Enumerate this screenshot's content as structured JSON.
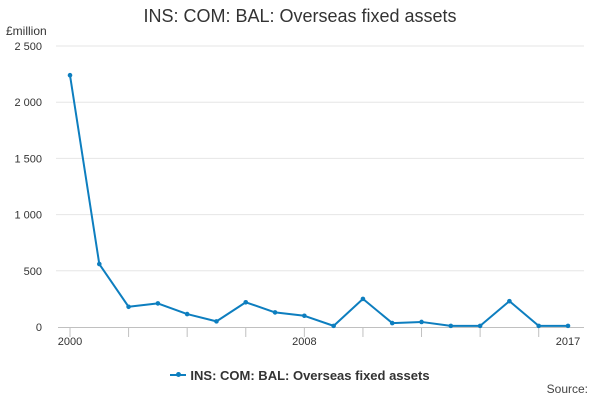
{
  "chart_data": {
    "type": "line",
    "title": "INS: COM: BAL: Overseas fixed assets",
    "ylabel": "£million",
    "xlabel": "",
    "ylim": [
      0,
      2500
    ],
    "yticks": [
      0,
      500,
      1000,
      1500,
      2000,
      2500
    ],
    "ytick_labels": [
      "0",
      "500",
      "1 000",
      "1 500",
      "2 000",
      "2 500"
    ],
    "xlim": [
      2000,
      2017
    ],
    "xtick_labels": [
      "2000",
      "2008",
      "2017"
    ],
    "grid": true,
    "legend_position": "bottom",
    "color": "#0d7ebf",
    "x": [
      2000,
      2001,
      2002,
      2003,
      2004,
      2005,
      2006,
      2007,
      2008,
      2009,
      2010,
      2011,
      2012,
      2013,
      2014,
      2015,
      2016,
      2017
    ],
    "series": [
      {
        "name": "INS: COM: BAL: Overseas fixed assets",
        "values": [
          2240,
          560,
          180,
          210,
          115,
          50,
          220,
          130,
          100,
          10,
          250,
          35,
          45,
          10,
          10,
          230,
          10,
          10
        ]
      }
    ],
    "source_label": "Source:"
  }
}
